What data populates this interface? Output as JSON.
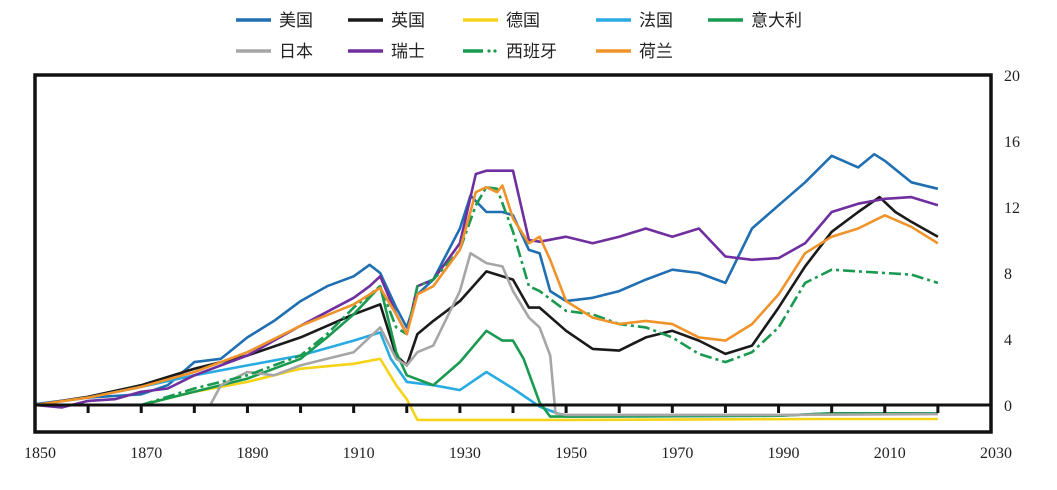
{
  "chart_data": {
    "type": "line",
    "title": "",
    "xlabel": "",
    "ylabel": "",
    "xlim": [
      1850,
      2030
    ],
    "ylim": [
      -2,
      20
    ],
    "x_ticks": [
      1850,
      1870,
      1890,
      1910,
      1930,
      1950,
      1970,
      1990,
      2010,
      2030
    ],
    "y_ticks": [
      0,
      4,
      8,
      12,
      16,
      20
    ],
    "y_axis_side": "right",
    "legend_position": "top-center",
    "series": [
      {
        "name": "美国",
        "color": "#1f6fb2",
        "dash": "solid",
        "points": [
          [
            1850,
            0.05
          ],
          [
            1860,
            0.45
          ],
          [
            1870,
            0.65
          ],
          [
            1875,
            1.2
          ],
          [
            1880,
            2.6
          ],
          [
            1885,
            2.8
          ],
          [
            1890,
            4.1
          ],
          [
            1895,
            5.1
          ],
          [
            1900,
            6.3
          ],
          [
            1905,
            7.2
          ],
          [
            1910,
            7.8
          ],
          [
            1913,
            8.5
          ],
          [
            1915,
            8.0
          ],
          [
            1918,
            5.9
          ],
          [
            1920,
            4.7
          ],
          [
            1922,
            6.7
          ],
          [
            1925,
            7.6
          ],
          [
            1930,
            10.7
          ],
          [
            1932,
            12.7
          ],
          [
            1935,
            11.7
          ],
          [
            1938,
            11.7
          ],
          [
            1940,
            11.5
          ],
          [
            1943,
            9.4
          ],
          [
            1945,
            9.2
          ],
          [
            1947,
            6.9
          ],
          [
            1950,
            6.3
          ],
          [
            1955,
            6.5
          ],
          [
            1960,
            6.9
          ],
          [
            1965,
            7.6
          ],
          [
            1970,
            8.2
          ],
          [
            1975,
            8.0
          ],
          [
            1980,
            7.4
          ],
          [
            1985,
            10.7
          ],
          [
            1990,
            12.1
          ],
          [
            1995,
            13.5
          ],
          [
            2000,
            15.1
          ],
          [
            2005,
            14.4
          ],
          [
            2008,
            15.2
          ],
          [
            2010,
            14.8
          ],
          [
            2015,
            13.5
          ],
          [
            2020,
            13.1
          ]
        ]
      },
      {
        "name": "英国",
        "color": "#1a1a1a",
        "dash": "solid",
        "points": [
          [
            1850,
            0
          ],
          [
            1860,
            0.5
          ],
          [
            1870,
            1.2
          ],
          [
            1880,
            2.2
          ],
          [
            1890,
            3.0
          ],
          [
            1900,
            4.1
          ],
          [
            1910,
            5.5
          ],
          [
            1915,
            6.1
          ],
          [
            1918,
            3.0
          ],
          [
            1920,
            2.4
          ],
          [
            1922,
            4.3
          ],
          [
            1925,
            5.1
          ],
          [
            1930,
            6.3
          ],
          [
            1935,
            8.1
          ],
          [
            1940,
            7.6
          ],
          [
            1943,
            5.9
          ],
          [
            1945,
            5.9
          ],
          [
            1950,
            4.5
          ],
          [
            1955,
            3.4
          ],
          [
            1960,
            3.3
          ],
          [
            1965,
            4.1
          ],
          [
            1970,
            4.5
          ],
          [
            1975,
            3.9
          ],
          [
            1980,
            3.1
          ],
          [
            1985,
            3.6
          ],
          [
            1990,
            5.9
          ],
          [
            1995,
            8.4
          ],
          [
            2000,
            10.5
          ],
          [
            2005,
            11.7
          ],
          [
            2009,
            12.6
          ],
          [
            2012,
            11.7
          ],
          [
            2015,
            11.1
          ],
          [
            2020,
            10.2
          ]
        ]
      },
      {
        "name": "德国",
        "color": "#f5d318",
        "dash": "solid",
        "points": [
          [
            1870,
            0
          ],
          [
            1880,
            0.8
          ],
          [
            1890,
            1.4
          ],
          [
            1900,
            2.2
          ],
          [
            1910,
            2.5
          ],
          [
            1915,
            2.8
          ],
          [
            1918,
            1.2
          ],
          [
            1920,
            0.35
          ],
          [
            1922,
            -0.9
          ],
          [
            1950,
            -0.9
          ],
          [
            2000,
            -0.85
          ],
          [
            2020,
            -0.85
          ]
        ]
      },
      {
        "name": "法国",
        "color": "#29abe2",
        "dash": "solid",
        "points": [
          [
            1850,
            0
          ],
          [
            1860,
            0.45
          ],
          [
            1870,
            1.1
          ],
          [
            1880,
            1.8
          ],
          [
            1890,
            2.4
          ],
          [
            1900,
            3.0
          ],
          [
            1910,
            3.9
          ],
          [
            1915,
            4.4
          ],
          [
            1917,
            2.8
          ],
          [
            1920,
            1.4
          ],
          [
            1925,
            1.2
          ],
          [
            1930,
            0.9
          ],
          [
            1935,
            2.0
          ],
          [
            1940,
            1.0
          ],
          [
            1945,
            -0.1
          ],
          [
            1950,
            -0.7
          ],
          [
            1960,
            -0.7
          ],
          [
            1990,
            -0.65
          ],
          [
            2000,
            -0.5
          ],
          [
            2020,
            -0.5
          ]
        ]
      },
      {
        "name": "意大利",
        "color": "#1a9a50",
        "dash": "solid",
        "points": [
          [
            1870,
            0
          ],
          [
            1880,
            0.8
          ],
          [
            1890,
            1.6
          ],
          [
            1900,
            2.8
          ],
          [
            1905,
            4.1
          ],
          [
            1910,
            5.5
          ],
          [
            1915,
            7.2
          ],
          [
            1918,
            3.2
          ],
          [
            1920,
            1.8
          ],
          [
            1925,
            1.2
          ],
          [
            1930,
            2.6
          ],
          [
            1935,
            4.5
          ],
          [
            1938,
            3.9
          ],
          [
            1940,
            3.9
          ],
          [
            1942,
            2.8
          ],
          [
            1945,
            0.15
          ],
          [
            1947,
            -0.7
          ],
          [
            1990,
            -0.65
          ],
          [
            2000,
            -0.5
          ],
          [
            2020,
            -0.5
          ]
        ]
      },
      {
        "name": "日本",
        "color": "#a6a6a6",
        "dash": "solid",
        "points": [
          [
            1883,
            0
          ],
          [
            1885,
            1.2
          ],
          [
            1890,
            2.0
          ],
          [
            1895,
            1.8
          ],
          [
            1900,
            2.4
          ],
          [
            1905,
            2.8
          ],
          [
            1910,
            3.2
          ],
          [
            1915,
            4.7
          ],
          [
            1918,
            2.8
          ],
          [
            1920,
            2.4
          ],
          [
            1922,
            3.2
          ],
          [
            1925,
            3.6
          ],
          [
            1930,
            6.9
          ],
          [
            1932,
            9.2
          ],
          [
            1935,
            8.6
          ],
          [
            1938,
            8.4
          ],
          [
            1940,
            6.9
          ],
          [
            1943,
            5.3
          ],
          [
            1945,
            4.7
          ],
          [
            1947,
            3.0
          ],
          [
            1948,
            -0.5
          ],
          [
            1950,
            -0.6
          ],
          [
            1990,
            -0.6
          ],
          [
            2020,
            -0.55
          ]
        ]
      },
      {
        "name": "瑞士",
        "color": "#6f2f9f",
        "dash": "solid",
        "points": [
          [
            1850,
            0
          ],
          [
            1855,
            -0.15
          ],
          [
            1860,
            0.25
          ],
          [
            1865,
            0.35
          ],
          [
            1870,
            0.8
          ],
          [
            1875,
            1.0
          ],
          [
            1880,
            1.8
          ],
          [
            1890,
            3.0
          ],
          [
            1900,
            4.8
          ],
          [
            1910,
            6.5
          ],
          [
            1913,
            7.2
          ],
          [
            1915,
            7.8
          ],
          [
            1918,
            5.5
          ],
          [
            1920,
            4.3
          ],
          [
            1922,
            7.2
          ],
          [
            1925,
            7.6
          ],
          [
            1930,
            9.8
          ],
          [
            1933,
            14.0
          ],
          [
            1935,
            14.2
          ],
          [
            1938,
            14.2
          ],
          [
            1940,
            14.2
          ],
          [
            1943,
            10.0
          ],
          [
            1945,
            9.9
          ],
          [
            1950,
            10.2
          ],
          [
            1955,
            9.8
          ],
          [
            1960,
            10.2
          ],
          [
            1965,
            10.7
          ],
          [
            1970,
            10.2
          ],
          [
            1975,
            10.7
          ],
          [
            1980,
            9.0
          ],
          [
            1985,
            8.8
          ],
          [
            1990,
            8.9
          ],
          [
            1995,
            9.8
          ],
          [
            2000,
            11.7
          ],
          [
            2005,
            12.2
          ],
          [
            2010,
            12.5
          ],
          [
            2015,
            12.6
          ],
          [
            2020,
            12.1
          ]
        ]
      },
      {
        "name": "西班牙",
        "color": "#1a9a50",
        "dash": "dash-dot",
        "points": [
          [
            1870,
            0
          ],
          [
            1880,
            1.0
          ],
          [
            1890,
            1.8
          ],
          [
            1900,
            3.0
          ],
          [
            1905,
            4.3
          ],
          [
            1910,
            5.9
          ],
          [
            1915,
            7.2
          ],
          [
            1918,
            4.7
          ],
          [
            1920,
            4.3
          ],
          [
            1922,
            7.2
          ],
          [
            1925,
            7.6
          ],
          [
            1930,
            9.4
          ],
          [
            1933,
            12.1
          ],
          [
            1935,
            13.2
          ],
          [
            1937,
            13.1
          ],
          [
            1940,
            10.5
          ],
          [
            1943,
            7.2
          ],
          [
            1945,
            6.9
          ],
          [
            1950,
            5.7
          ],
          [
            1955,
            5.5
          ],
          [
            1960,
            4.9
          ],
          [
            1965,
            4.7
          ],
          [
            1970,
            4.1
          ],
          [
            1975,
            3.1
          ],
          [
            1980,
            2.6
          ],
          [
            1985,
            3.2
          ],
          [
            1990,
            4.7
          ],
          [
            1995,
            7.4
          ],
          [
            2000,
            8.2
          ],
          [
            2005,
            8.1
          ],
          [
            2010,
            8.0
          ],
          [
            2015,
            7.9
          ],
          [
            2020,
            7.4
          ]
        ]
      },
      {
        "name": "荷兰",
        "color": "#f0932b",
        "dash": "solid",
        "points": [
          [
            1850,
            0
          ],
          [
            1860,
            0.45
          ],
          [
            1870,
            1.1
          ],
          [
            1880,
            2.0
          ],
          [
            1890,
            3.2
          ],
          [
            1900,
            4.8
          ],
          [
            1910,
            6.1
          ],
          [
            1915,
            7.1
          ],
          [
            1918,
            5.5
          ],
          [
            1920,
            4.3
          ],
          [
            1922,
            6.7
          ],
          [
            1925,
            7.2
          ],
          [
            1930,
            9.4
          ],
          [
            1933,
            12.9
          ],
          [
            1935,
            13.2
          ],
          [
            1937,
            12.9
          ],
          [
            1938,
            13.3
          ],
          [
            1940,
            11.3
          ],
          [
            1943,
            9.8
          ],
          [
            1945,
            10.2
          ],
          [
            1947,
            8.8
          ],
          [
            1950,
            6.3
          ],
          [
            1955,
            5.3
          ],
          [
            1960,
            4.9
          ],
          [
            1965,
            5.1
          ],
          [
            1970,
            4.9
          ],
          [
            1975,
            4.1
          ],
          [
            1980,
            3.9
          ],
          [
            1985,
            4.9
          ],
          [
            1990,
            6.7
          ],
          [
            1995,
            9.2
          ],
          [
            2000,
            10.2
          ],
          [
            2005,
            10.7
          ],
          [
            2010,
            11.5
          ],
          [
            2015,
            10.8
          ],
          [
            2020,
            9.8
          ]
        ]
      }
    ]
  }
}
